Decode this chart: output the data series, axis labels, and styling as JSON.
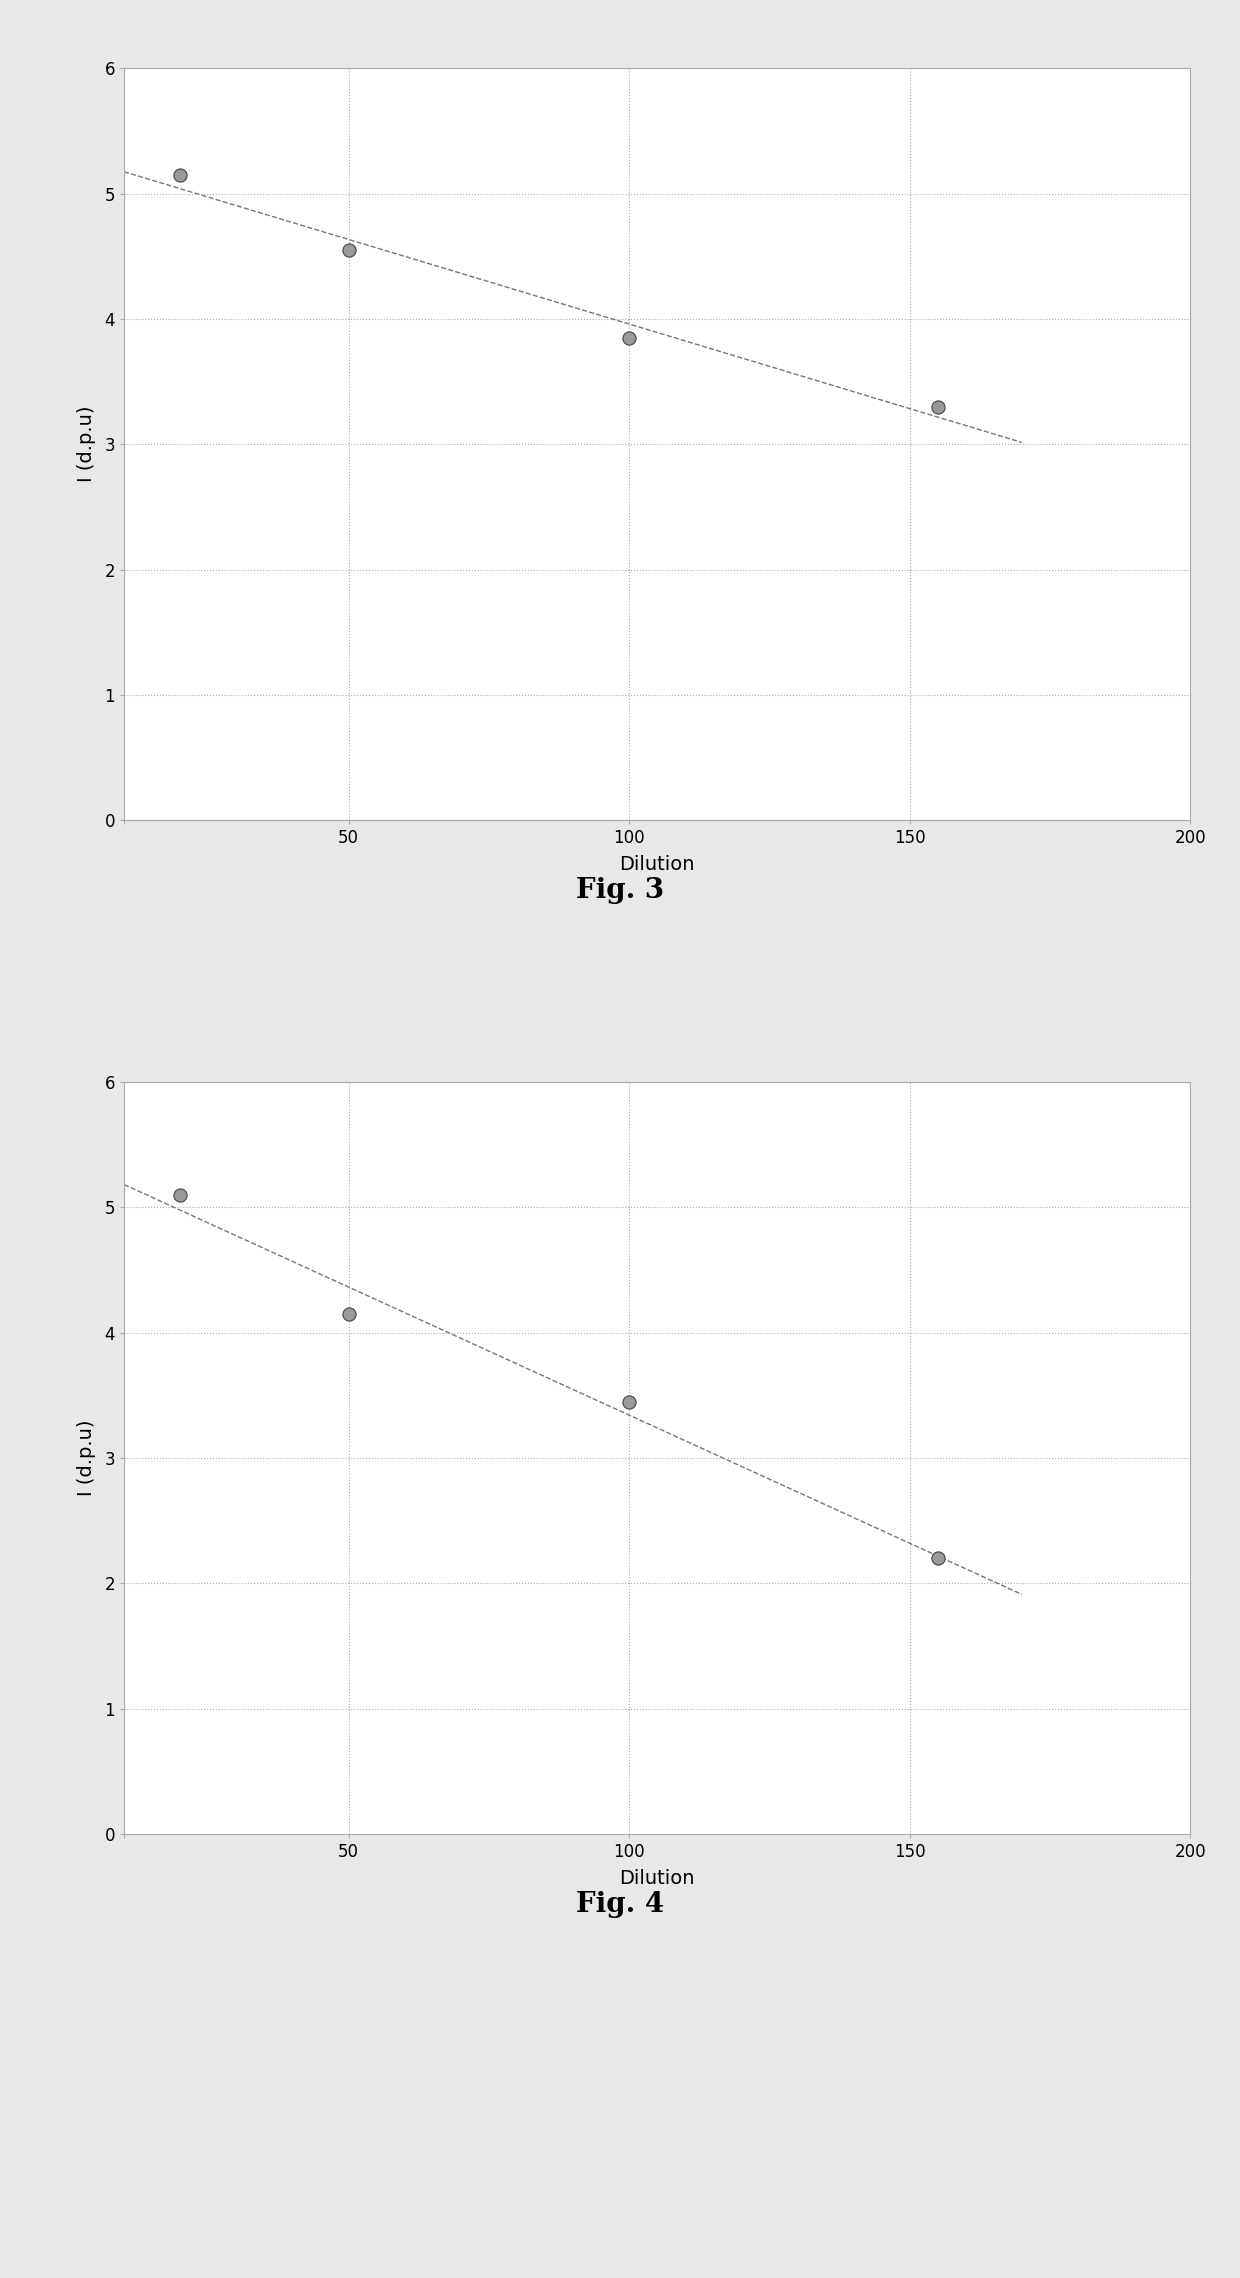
{
  "fig3": {
    "x": [
      20,
      50,
      100,
      155
    ],
    "y": [
      5.15,
      4.55,
      3.85,
      3.3
    ],
    "xlabel": "Dilution",
    "ylabel": "I (d.p.u)",
    "xlim": [
      10,
      200
    ],
    "ylim": [
      0,
      6
    ],
    "xticks": [
      10,
      50,
      100,
      150,
      200
    ],
    "xticklabels": [
      "",
      "50",
      "100",
      "150",
      "200"
    ],
    "yticks": [
      0,
      1,
      2,
      3,
      4,
      5,
      6
    ],
    "yticklabels": [
      "0",
      "1",
      "2",
      "3",
      "4",
      "5",
      "6"
    ],
    "caption": "Fig. 3",
    "trendline_x": [
      10,
      170
    ]
  },
  "fig4": {
    "x": [
      20,
      50,
      100,
      155
    ],
    "y": [
      5.1,
      4.15,
      3.45,
      2.2
    ],
    "xlabel": "Dilution",
    "ylabel": "I (d.p.u)",
    "xlim": [
      10,
      200
    ],
    "ylim": [
      0,
      6
    ],
    "xticks": [
      10,
      50,
      100,
      150,
      200
    ],
    "xticklabels": [
      "",
      "50",
      "100",
      "150",
      "200"
    ],
    "yticks": [
      0,
      1,
      2,
      3,
      4,
      5,
      6
    ],
    "yticklabels": [
      "0",
      "1",
      "2",
      "3",
      "4",
      "5",
      "6"
    ],
    "caption": "Fig. 4",
    "trendline_x": [
      10,
      170
    ]
  },
  "background_color": "#e8e8e8",
  "plot_bg_color": "#ffffff",
  "grid_color": "#aaaaaa",
  "line_color": "#777777",
  "marker_facecolor": "#999999",
  "marker_edgecolor": "#444444",
  "marker_size": 90,
  "line_style": "--",
  "line_width": 1.0,
  "caption_fontsize": 20,
  "axis_label_fontsize": 14,
  "tick_fontsize": 12,
  "ylabel_rotation": 90
}
